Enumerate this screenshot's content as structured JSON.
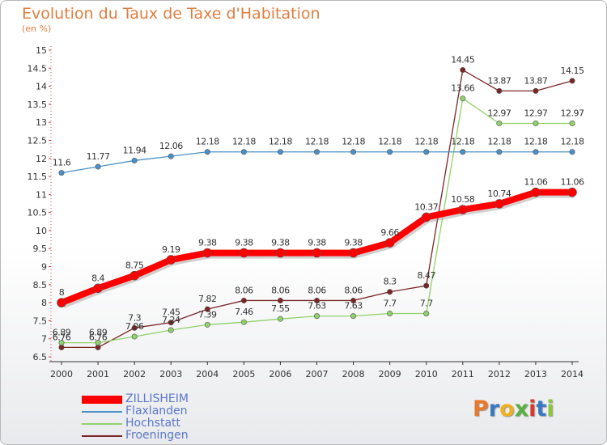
{
  "chart_data": {
    "type": "line",
    "title": "Evolution du Taux de Taxe d'Habitation",
    "subtitle": "(en %)",
    "x": [
      "2000",
      "2001",
      "2002",
      "2003",
      "2004",
      "2005",
      "2006",
      "2007",
      "2008",
      "2009",
      "2010",
      "2011",
      "2012",
      "2013",
      "2014"
    ],
    "ylim": [
      6.5,
      15
    ],
    "yticks": [
      "6.5",
      "7",
      "7.5",
      "8",
      "8.5",
      "9",
      "9.5",
      "10",
      "10.5",
      "11",
      "11.5",
      "12",
      "12.5",
      "13",
      "13.5",
      "14",
      "14.5",
      "15"
    ],
    "grid": false,
    "legend_position": "bottom-left",
    "series": [
      {
        "name": "ZILLISHEIM",
        "color": "#ff0000",
        "values": [
          8,
          8.4,
          8.75,
          9.19,
          9.38,
          9.38,
          9.38,
          9.38,
          9.38,
          9.66,
          10.37,
          10.58,
          10.74,
          11.06,
          11.06
        ],
        "labels": [
          "8",
          "8.4",
          "8.75",
          "9.19",
          "9.38",
          "9.38",
          "9.38",
          "9.38",
          "9.38",
          "9.66",
          "10.37",
          "10.58",
          "10.74",
          "11.06",
          "11.06"
        ]
      },
      {
        "name": "Flaxlanden",
        "color": "#4a90c8",
        "values": [
          11.6,
          11.77,
          11.94,
          12.06,
          12.18,
          12.18,
          12.18,
          12.18,
          12.18,
          12.18,
          12.18,
          12.18,
          12.18,
          12.18,
          12.18
        ],
        "labels": [
          "11.6",
          "11.77",
          "11.94",
          "12.06",
          "12.18",
          "12.18",
          "12.18",
          "12.18",
          "12.18",
          "12.18",
          "12.18",
          "12.18",
          "12.18",
          "12.18",
          "12.18"
        ]
      },
      {
        "name": "Hochstatt",
        "color": "#8fd16a",
        "values": [
          6.89,
          6.89,
          7.06,
          7.24,
          7.39,
          7.46,
          7.55,
          7.63,
          7.63,
          7.7,
          7.7,
          13.66,
          12.97,
          12.97,
          12.97
        ],
        "labels": [
          "6.89",
          "6.89",
          "7.06",
          "7.24",
          "7.39",
          "7.46",
          "7.55",
          "7.63",
          "7.63",
          "7.7",
          "7.7",
          "13.66",
          "12.97",
          "12.97",
          "12.97"
        ]
      },
      {
        "name": "Froeningen",
        "color": "#7b2626",
        "values": [
          6.76,
          6.76,
          7.3,
          7.45,
          7.82,
          8.06,
          8.06,
          8.06,
          8.06,
          8.3,
          8.47,
          14.45,
          13.87,
          13.87,
          14.15
        ],
        "labels": [
          "6.76",
          "6.76",
          "7.3",
          "7.45",
          "7.82",
          "8.06",
          "8.06",
          "8.06",
          "8.06",
          "8.3",
          "8.47",
          "14.45",
          "13.87",
          "13.87",
          "14.15"
        ]
      }
    ]
  },
  "logo": {
    "letters": [
      "P",
      "r",
      "o",
      "x",
      "i",
      "t",
      "i"
    ]
  }
}
